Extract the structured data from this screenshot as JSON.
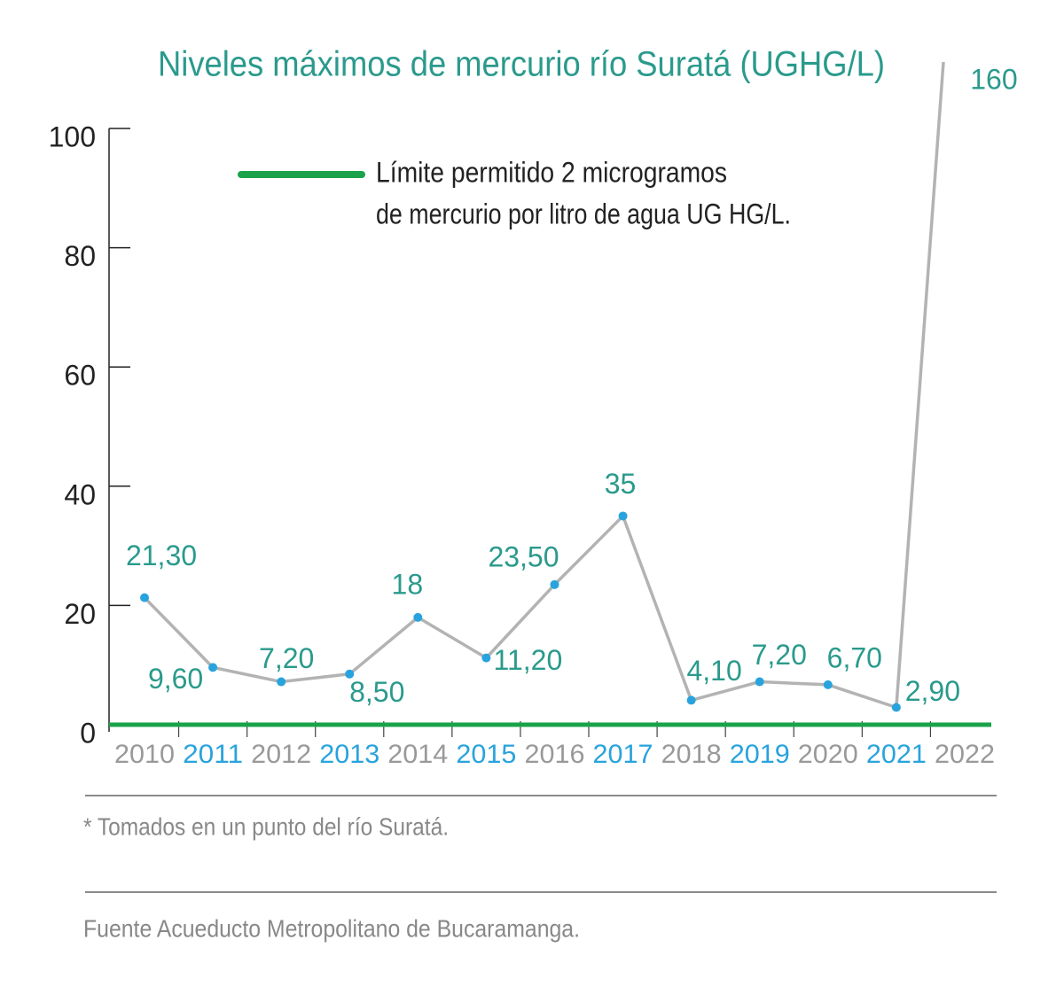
{
  "chart_data": {
    "type": "line",
    "title": "Niveles máximos de mercurio río Suratá (UGHG/L)",
    "legend": [
      "Límite permitido 2 microgramos",
      "de mercurio por litro de agua UG HG/L."
    ],
    "categories": [
      "2010",
      "2011",
      "2012",
      "2013",
      "2014",
      "2015",
      "2016",
      "2017",
      "2018",
      "2019",
      "2020",
      "2021",
      "2022"
    ],
    "values": [
      21.3,
      9.6,
      7.2,
      8.5,
      18,
      11.2,
      23.5,
      35,
      4.1,
      7.2,
      6.7,
      2.9,
      160
    ],
    "value_labels": [
      "21,30",
      "9,60",
      "7,20",
      "8,50",
      "18",
      "11,20",
      "23,50",
      "35",
      "4,10",
      "7,20",
      "6,70",
      "2,90",
      "160"
    ],
    "color": "#b3b3b3",
    "marker_color": "#29a3dd",
    "label_color": "#2a9a8c",
    "limit_color": "#1aa34a",
    "ylim": [
      0,
      100
    ],
    "yticks": [
      0,
      20,
      40,
      60,
      80,
      100
    ],
    "note": "* Tomados en un punto del río Suratá.",
    "source": "Fuente Acueducto Metropolitano de Bucaramanga."
  }
}
